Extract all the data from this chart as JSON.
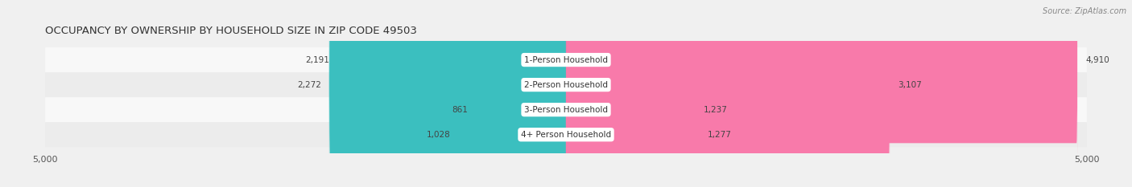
{
  "title": "OCCUPANCY BY OWNERSHIP BY HOUSEHOLD SIZE IN ZIP CODE 49503",
  "source": "Source: ZipAtlas.com",
  "categories": [
    "1-Person Household",
    "2-Person Household",
    "3-Person Household",
    "4+ Person Household"
  ],
  "owner_values": [
    2191,
    2272,
    861,
    1028
  ],
  "renter_values": [
    4910,
    3107,
    1237,
    1277
  ],
  "owner_color": "#3bbfbf",
  "renter_color": "#f87aaa",
  "axis_max": 5000,
  "background_color": "#f0f0f0",
  "title_fontsize": 9.5,
  "cat_label_fontsize": 7.5,
  "value_fontsize": 7.5,
  "tick_fontsize": 8,
  "source_fontsize": 7.0,
  "bar_height": 0.68,
  "row_bg_light": "#f8f8f8",
  "row_bg_dark": "#ececec",
  "bar_row_bg": "#e2e2e2"
}
